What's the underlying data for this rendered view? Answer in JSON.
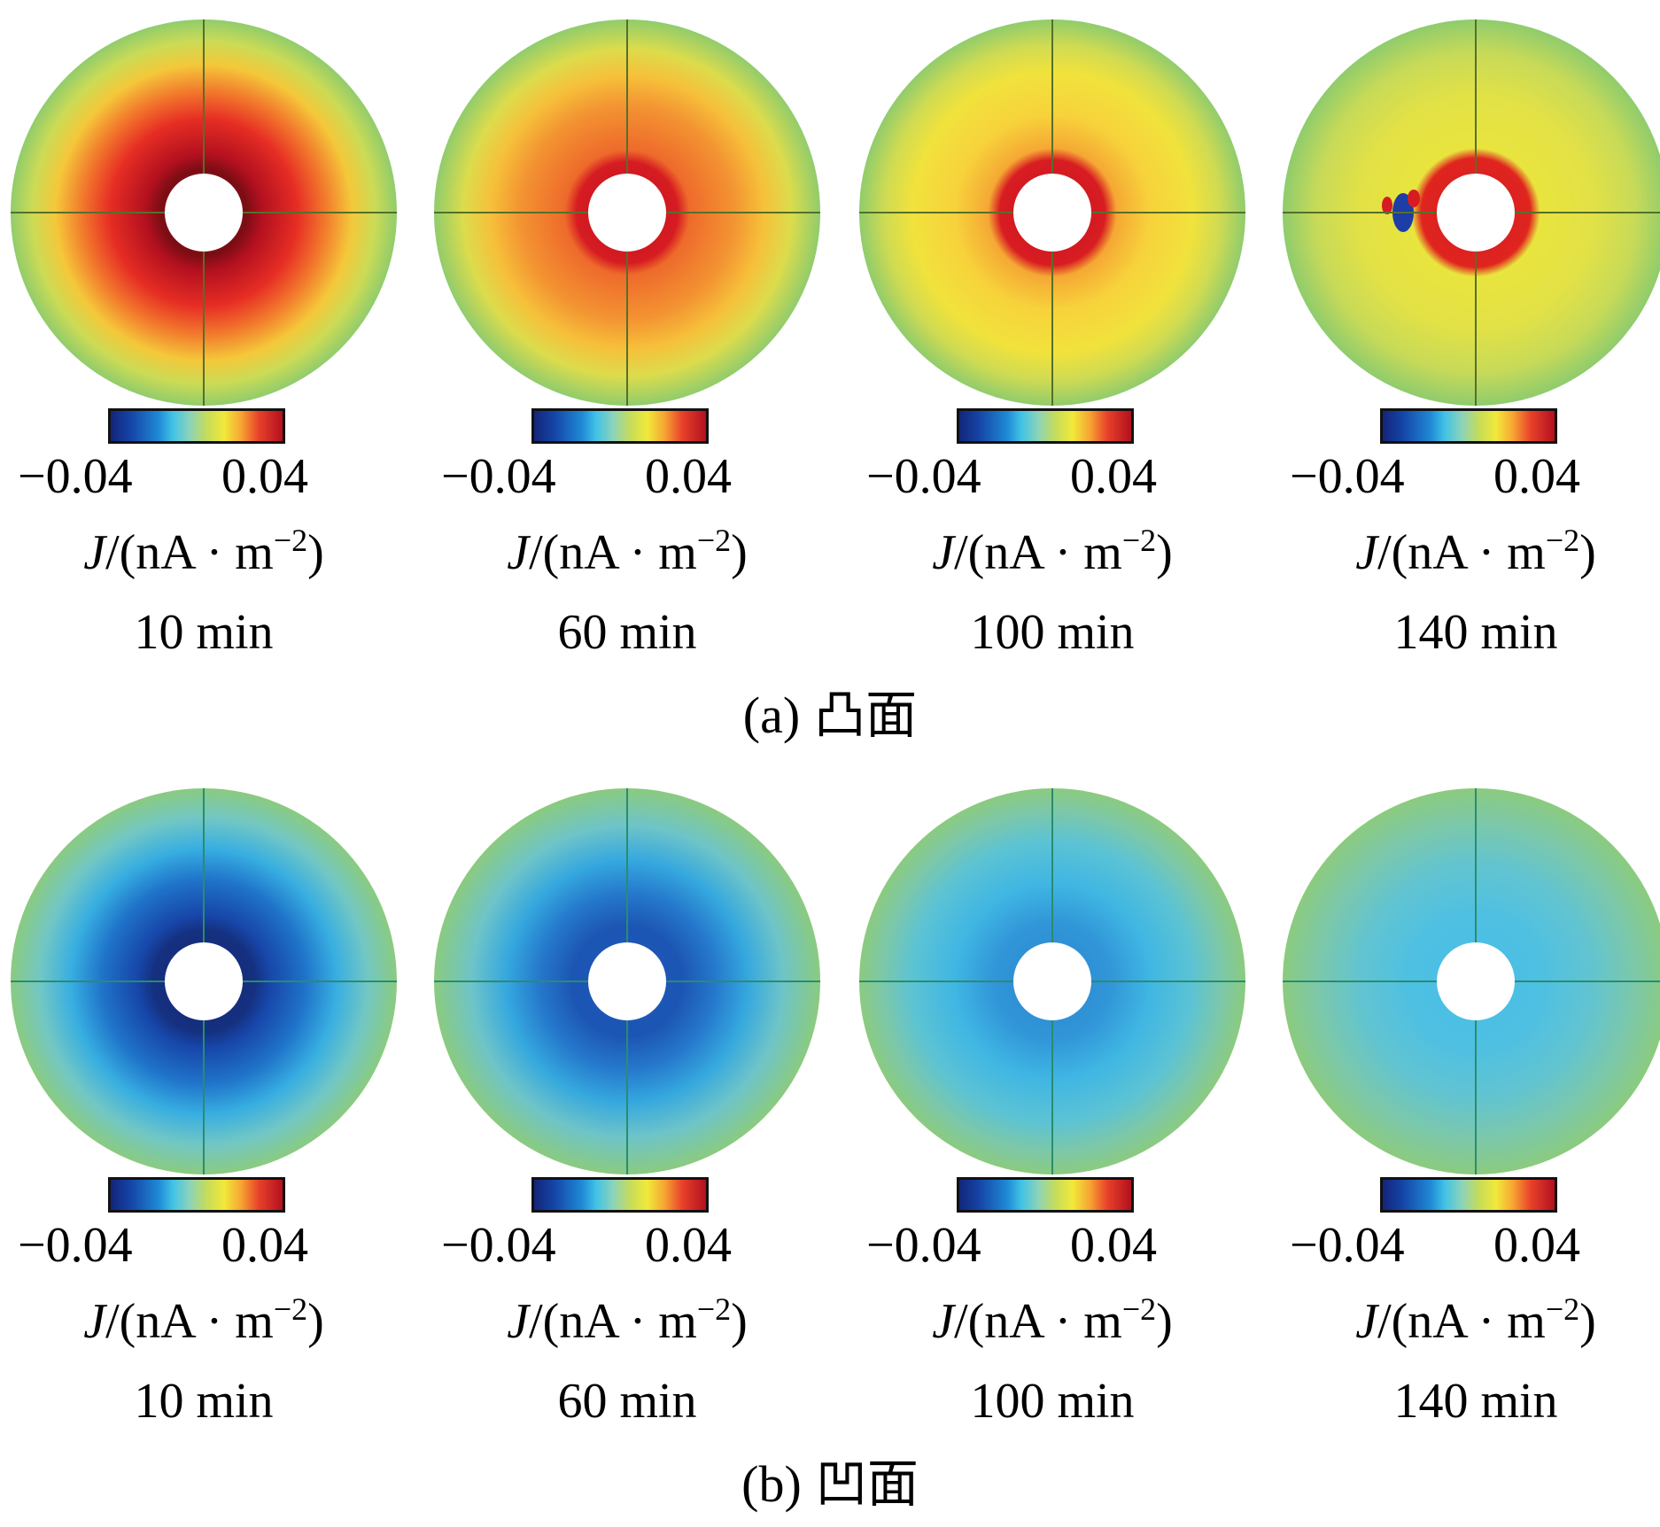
{
  "colorbar": {
    "min_label": "−0.04",
    "max_label": "0.04",
    "unit_symbol": "J",
    "unit_text": "/(nA · m",
    "unit_exp": "−2",
    "unit_close": ")"
  },
  "panels": [
    {
      "caption_letter": "(a)",
      "caption_text": "凸面",
      "times": [
        "10 min",
        "60 min",
        "100 min",
        "140 min"
      ]
    },
    {
      "caption_letter": "(b)",
      "caption_text": "凹面",
      "times": [
        "10 min",
        "60 min",
        "100 min",
        "140 min"
      ]
    }
  ],
  "colors": {
    "scale_low": "#13257a",
    "scale_mid": "#8cd3b9",
    "scale_high": "#b3101f"
  }
}
